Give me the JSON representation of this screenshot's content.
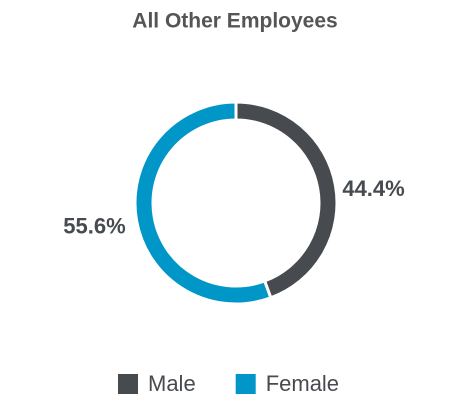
{
  "chart_data": {
    "type": "donut",
    "title": "All Other Employees",
    "categories": [
      "Male",
      "Female"
    ],
    "values": [
      44.4,
      55.6
    ],
    "value_labels": [
      "44.4%",
      "55.6%"
    ],
    "colors": [
      "#474b4f",
      "#0096c8"
    ],
    "legend": "bottom"
  }
}
